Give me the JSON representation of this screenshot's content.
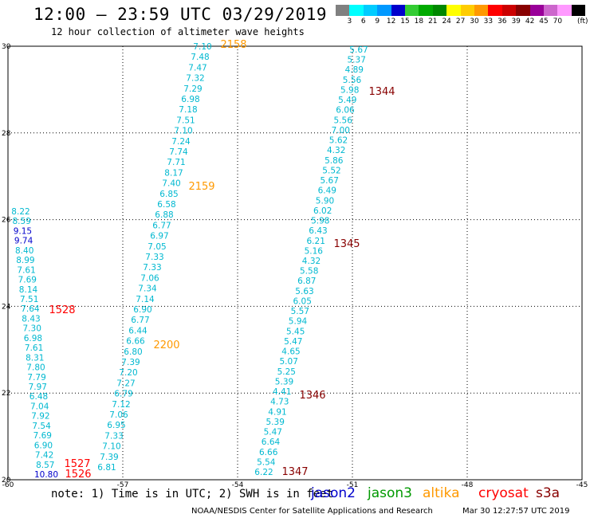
{
  "title": "12:00 – 23:59 UTC 03/29/2019",
  "subtitle": "12 hour collection of altimeter wave heights",
  "legend": {
    "unit": "(ft)",
    "bins": [
      {
        "label": "",
        "color": "#808080"
      },
      {
        "label": "3",
        "color": "#00ffff"
      },
      {
        "label": "6",
        "color": "#00ccff"
      },
      {
        "label": "9",
        "color": "#0099ff"
      },
      {
        "label": "12",
        "color": "#0000cc"
      },
      {
        "label": "15",
        "color": "#33cc33"
      },
      {
        "label": "18",
        "color": "#00aa00"
      },
      {
        "label": "21",
        "color": "#008800"
      },
      {
        "label": "24",
        "color": "#ffff00"
      },
      {
        "label": "27",
        "color": "#ffcc00"
      },
      {
        "label": "30",
        "color": "#ff9900"
      },
      {
        "label": "33",
        "color": "#ff0000"
      },
      {
        "label": "36",
        "color": "#cc0000"
      },
      {
        "label": "39",
        "color": "#880000"
      },
      {
        "label": "42",
        "color": "#990099"
      },
      {
        "label": "45",
        "color": "#cc66cc"
      },
      {
        "label": "70",
        "color": "#ff99ff"
      },
      {
        "label": "",
        "color": "#000000"
      }
    ]
  },
  "map": {
    "lon_ticks": [
      "-60",
      "-57",
      "-54",
      "-51",
      "-48",
      "-45"
    ],
    "lat_ticks": [
      "30",
      "28",
      "26",
      "24",
      "22",
      "20"
    ],
    "passes": [
      {
        "label": "2158",
        "color": "#ff9900"
      },
      {
        "label": "2159",
        "color": "#ff9900"
      },
      {
        "label": "2200",
        "color": "#ff9900"
      },
      {
        "label": "1344",
        "color": "#880000"
      },
      {
        "label": "1345",
        "color": "#880000"
      },
      {
        "label": "1346",
        "color": "#880000"
      },
      {
        "label": "1347",
        "color": "#880000"
      },
      {
        "label": "1528",
        "color": "#ff0000"
      },
      {
        "label": "1527",
        "color": "#ff0000"
      },
      {
        "label": "1526",
        "color": "#ff0000"
      }
    ],
    "tracks": [
      {
        "name": "altika-track",
        "color": "#00b8d0",
        "values": [
          "7.10",
          "7.48",
          "7.47",
          "7.32",
          "7.29",
          "6.98",
          "7.18",
          "7.51",
          "7.10",
          "7.24",
          "7.74",
          "7.71",
          "8.17",
          "7.40",
          "6.85",
          "6.58",
          "6.88",
          "6.77",
          "6.97",
          "7.05",
          "7.33",
          "7.33",
          "7.06",
          "7.34",
          "7.14",
          "6.90",
          "6.77",
          "6.44",
          "6.66",
          "6.80",
          "7.39",
          "7.20",
          "7.27",
          "6.79",
          "7.12",
          "7.06",
          "6.95",
          "7.33",
          "7.10",
          "7.39",
          "6.81"
        ]
      },
      {
        "name": "s3a-track",
        "color": "#00b8d0",
        "values": [
          "5.67",
          "5.37",
          "4.89",
          "5.56",
          "5.98",
          "5.49",
          "6.06",
          "5.56",
          "7.00",
          "5.62",
          "4.32",
          "5.86",
          "5.52",
          "5.67",
          "6.49",
          "5.90",
          "6.02",
          "5.98",
          "6.43",
          "6.21",
          "5.16",
          "4.32",
          "5.58",
          "6.87",
          "5.63",
          "6.05",
          "5.57",
          "5.94",
          "5.45",
          "5.47",
          "4.65",
          "5.07",
          "5.25",
          "5.39",
          "4.41",
          "4.73",
          "4.91",
          "5.39",
          "5.47",
          "6.64",
          "6.66",
          "5.54",
          "6.22"
        ]
      },
      {
        "name": "cryosat-track",
        "color": "#00b8d0",
        "values": [
          "8.22",
          "8.59",
          "9.15",
          "9.74",
          "8.40",
          "8.99",
          "7.61",
          "7.69",
          "8.14",
          "7.51",
          "7.64",
          "8.43",
          "7.30",
          "6.98",
          "7.61",
          "8.31",
          "7.80",
          "7.79",
          "7.97",
          "6.48",
          "7.04",
          "7.92",
          "7.54",
          "7.69",
          "6.90",
          "7.42",
          "8.57",
          "10.80"
        ]
      }
    ]
  },
  "note": "note: 1) Time is in UTC; 2) SWH is in feet",
  "satellites": [
    {
      "name": "jason2",
      "color": "#0000cc"
    },
    {
      "name": "jason3",
      "color": "#009900"
    },
    {
      "name": "altika",
      "color": "#ff9900"
    },
    {
      "name": "cryosat",
      "color": "#ff0000"
    },
    {
      "name": "s3a",
      "color": "#880000"
    }
  ],
  "credit": "NOAA/NESDIS Center for Satellite Applications and Research",
  "timestamp": "Mar 30 12:27:57 UTC 2019"
}
